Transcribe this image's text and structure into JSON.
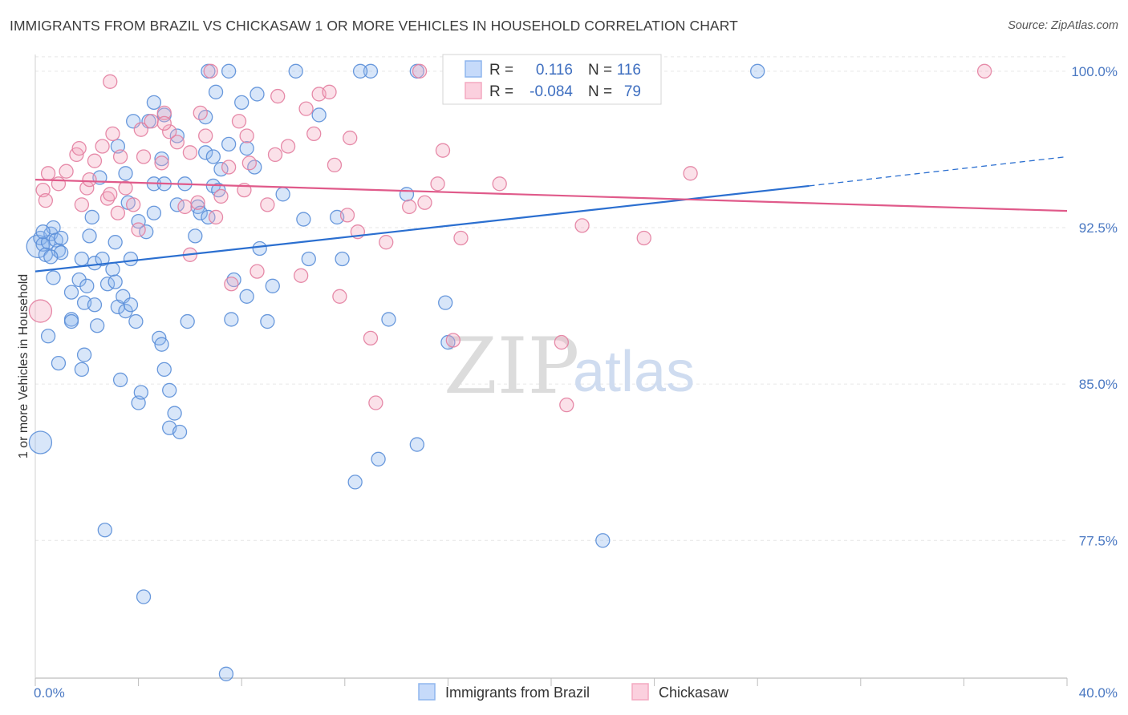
{
  "header": {
    "title": "IMMIGRANTS FROM BRAZIL VS CHICKASAW 1 OR MORE VEHICLES IN HOUSEHOLD CORRELATION CHART",
    "source": "Source: ZipAtlas.com"
  },
  "watermark": {
    "zip": "ZIP",
    "atlas": "atlas"
  },
  "legend_box": {
    "rows": [
      {
        "r_label": "R =",
        "r_value": "0.116",
        "n_label": "N =",
        "n_value": "116",
        "color": "#8fb6ee"
      },
      {
        "r_label": "R =",
        "r_value": "-0.084",
        "n_label": "N =",
        "n_value": "79",
        "color": "#f4a9c1"
      }
    ]
  },
  "bottom_legend": {
    "items": [
      {
        "label": "Immigrants from Brazil",
        "color": "#8fb6ee"
      },
      {
        "label": "Chickasaw",
        "color": "#f4a9c1"
      }
    ]
  },
  "chart_data": {
    "type": "scatter",
    "title": "IMMIGRANTS FROM BRAZIL VS CHICKASAW 1 OR MORE VEHICLES IN HOUSEHOLD CORRELATION CHART",
    "xlabel": "",
    "ylabel": "1 or more Vehicles in Household",
    "xlim": [
      0,
      40
    ],
    "ylim": [
      70.9,
      100.8
    ],
    "x_tick_labels": [
      {
        "value": 0,
        "label": "0.0%"
      },
      {
        "value": 40,
        "label": "40.0%"
      }
    ],
    "y_tick_labels": [
      {
        "value": 100,
        "label": "100.0%"
      },
      {
        "value": 92.5,
        "label": "92.5%"
      },
      {
        "value": 85,
        "label": "85.0%"
      },
      {
        "value": 77.5,
        "label": "77.5%"
      }
    ],
    "grid": true,
    "legend_position": "top-center",
    "series": [
      {
        "name": "Immigrants from Brazil",
        "color": "#8fb6ee",
        "stroke": "#5a8ed8",
        "trend": {
          "x0": 0,
          "y0": 90.4,
          "x1": 30,
          "y1": 94.5,
          "dash_to_x": 40,
          "dash_to_y": 95.9,
          "color": "#2b6fd0"
        },
        "points": [
          [
            0.1,
            91.6
          ],
          [
            0.2,
            92.0
          ],
          [
            0.3,
            91.7
          ],
          [
            0.4,
            91.2
          ],
          [
            0.5,
            91.8
          ],
          [
            0.6,
            92.2
          ],
          [
            0.7,
            92.5
          ],
          [
            0.8,
            91.9
          ],
          [
            0.9,
            91.4
          ],
          [
            1.0,
            92.0
          ],
          [
            0.5,
            87.3
          ],
          [
            0.7,
            90.1
          ],
          [
            0.9,
            86.0
          ],
          [
            1.4,
            88.1
          ],
          [
            1.7,
            90.0
          ],
          [
            1.9,
            88.9
          ],
          [
            2.3,
            88.8
          ],
          [
            2.4,
            87.8
          ],
          [
            1.9,
            86.4
          ],
          [
            1.4,
            88.0
          ],
          [
            1.4,
            89.4
          ],
          [
            1.8,
            85.7
          ],
          [
            2.0,
            89.7
          ],
          [
            2.2,
            93.0
          ],
          [
            2.3,
            90.8
          ],
          [
            2.6,
            91.0
          ],
          [
            2.8,
            89.8
          ],
          [
            3.0,
            90.5
          ],
          [
            3.1,
            89.9
          ],
          [
            3.2,
            88.7
          ],
          [
            3.3,
            85.2
          ],
          [
            3.4,
            89.2
          ],
          [
            3.5,
            88.5
          ],
          [
            3.6,
            93.7
          ],
          [
            3.7,
            91.0
          ],
          [
            3.9,
            88.0
          ],
          [
            4.0,
            84.1
          ],
          [
            4.1,
            84.6
          ],
          [
            4.3,
            92.3
          ],
          [
            4.6,
            93.2
          ],
          [
            4.8,
            87.2
          ],
          [
            4.9,
            86.9
          ],
          [
            5.0,
            85.7
          ],
          [
            5.2,
            84.7
          ],
          [
            5.2,
            82.9
          ],
          [
            5.4,
            83.6
          ],
          [
            5.6,
            82.7
          ],
          [
            5.9,
            88.0
          ],
          [
            6.3,
            93.5
          ],
          [
            6.4,
            93.2
          ],
          [
            6.7,
            93.0
          ],
          [
            6.9,
            94.5
          ],
          [
            7.2,
            95.3
          ],
          [
            7.6,
            88.1
          ],
          [
            7.7,
            90.0
          ],
          [
            8.2,
            89.2
          ],
          [
            8.7,
            91.5
          ],
          [
            9.0,
            88.0
          ],
          [
            9.6,
            94.1
          ],
          [
            10.4,
            92.9
          ],
          [
            10.6,
            91.0
          ],
          [
            11.0,
            97.9
          ],
          [
            11.7,
            93.0
          ],
          [
            11.9,
            91.0
          ],
          [
            13.7,
            88.1
          ],
          [
            14.4,
            94.1
          ],
          [
            14.8,
            82.1
          ],
          [
            15.9,
            88.9
          ],
          [
            16.0,
            87.0
          ],
          [
            22.0,
            77.5
          ],
          [
            3.2,
            96.4
          ],
          [
            3.5,
            95.1
          ],
          [
            4.4,
            97.6
          ],
          [
            4.6,
            98.5
          ],
          [
            4.9,
            95.8
          ],
          [
            5.0,
            97.9
          ],
          [
            5.8,
            94.6
          ],
          [
            6.6,
            97.8
          ],
          [
            7.0,
            99.0
          ],
          [
            7.5,
            96.5
          ],
          [
            8.0,
            98.5
          ],
          [
            8.6,
            98.9
          ],
          [
            10.1,
            100.0
          ],
          [
            13.0,
            100.0
          ],
          [
            14.8,
            100.0
          ],
          [
            12.6,
            100.0
          ],
          [
            6.7,
            100.0
          ],
          [
            7.5,
            100.0
          ],
          [
            28.0,
            100.0
          ],
          [
            2.7,
            78.0
          ],
          [
            4.2,
            74.8
          ],
          [
            7.4,
            71.1
          ],
          [
            12.4,
            80.3
          ],
          [
            13.3,
            81.4
          ],
          [
            0.2,
            82.2
          ],
          [
            6.6,
            96.1
          ],
          [
            8.2,
            96.3
          ],
          [
            3.8,
            97.6
          ],
          [
            2.5,
            94.9
          ],
          [
            4.6,
            94.6
          ],
          [
            5.5,
            93.6
          ],
          [
            6.2,
            92.1
          ],
          [
            1.8,
            91.0
          ],
          [
            3.7,
            88.8
          ],
          [
            5.0,
            94.6
          ],
          [
            7.1,
            94.3
          ],
          [
            4.0,
            92.8
          ],
          [
            2.1,
            92.1
          ],
          [
            1.0,
            91.3
          ],
          [
            0.6,
            91.1
          ],
          [
            0.3,
            92.3
          ],
          [
            3.1,
            91.8
          ],
          [
            5.5,
            96.9
          ],
          [
            6.9,
            95.9
          ],
          [
            9.2,
            89.7
          ],
          [
            8.5,
            95.4
          ]
        ]
      },
      {
        "name": "Chickasaw",
        "color": "#f4a9c1",
        "stroke": "#e37ea0",
        "trend": {
          "x0": 0,
          "y0": 94.8,
          "x1": 40,
          "y1": 93.3,
          "color": "#e05a8a"
        },
        "points": [
          [
            0.2,
            88.5
          ],
          [
            0.3,
            94.3
          ],
          [
            0.4,
            93.8
          ],
          [
            0.5,
            95.1
          ],
          [
            0.9,
            94.6
          ],
          [
            1.2,
            95.2
          ],
          [
            1.6,
            96.0
          ],
          [
            1.8,
            93.6
          ],
          [
            2.0,
            94.4
          ],
          [
            2.1,
            94.8
          ],
          [
            2.3,
            95.7
          ],
          [
            2.6,
            96.4
          ],
          [
            2.8,
            93.9
          ],
          [
            2.9,
            94.1
          ],
          [
            3.0,
            97.0
          ],
          [
            3.2,
            93.2
          ],
          [
            3.5,
            94.4
          ],
          [
            3.8,
            93.6
          ],
          [
            4.1,
            97.2
          ],
          [
            4.2,
            95.9
          ],
          [
            4.5,
            97.6
          ],
          [
            4.9,
            95.6
          ],
          [
            5.0,
            98.0
          ],
          [
            5.2,
            97.1
          ],
          [
            5.5,
            96.6
          ],
          [
            5.8,
            93.5
          ],
          [
            6.0,
            96.1
          ],
          [
            6.3,
            93.7
          ],
          [
            6.6,
            96.9
          ],
          [
            7.0,
            93.0
          ],
          [
            7.2,
            94.0
          ],
          [
            7.5,
            95.4
          ],
          [
            7.9,
            97.6
          ],
          [
            8.2,
            96.9
          ],
          [
            8.3,
            95.6
          ],
          [
            8.6,
            90.4
          ],
          [
            9.0,
            93.6
          ],
          [
            9.3,
            96.0
          ],
          [
            9.8,
            96.4
          ],
          [
            10.3,
            90.2
          ],
          [
            10.5,
            98.2
          ],
          [
            10.8,
            97.0
          ],
          [
            11.0,
            98.9
          ],
          [
            11.6,
            95.5
          ],
          [
            11.8,
            89.2
          ],
          [
            12.1,
            93.1
          ],
          [
            12.5,
            92.3
          ],
          [
            13.0,
            87.2
          ],
          [
            13.2,
            84.1
          ],
          [
            13.6,
            91.8
          ],
          [
            14.5,
            93.5
          ],
          [
            15.1,
            93.7
          ],
          [
            15.6,
            94.6
          ],
          [
            15.8,
            96.2
          ],
          [
            16.2,
            87.1
          ],
          [
            16.5,
            92.0
          ],
          [
            18.0,
            94.6
          ],
          [
            20.4,
            87.0
          ],
          [
            20.6,
            84.0
          ],
          [
            21.2,
            92.6
          ],
          [
            23.6,
            92.0
          ],
          [
            25.4,
            95.1
          ],
          [
            36.8,
            100.0
          ],
          [
            14.9,
            100.0
          ],
          [
            17.0,
            100.0
          ],
          [
            19.1,
            100.0
          ],
          [
            6.8,
            100.0
          ],
          [
            5.0,
            97.5
          ],
          [
            8.1,
            94.3
          ],
          [
            6.0,
            91.2
          ],
          [
            7.6,
            89.8
          ],
          [
            4.0,
            92.4
          ],
          [
            3.3,
            95.9
          ],
          [
            9.4,
            98.8
          ],
          [
            12.2,
            96.8
          ],
          [
            1.7,
            96.3
          ],
          [
            11.4,
            99.0
          ],
          [
            2.9,
            99.5
          ],
          [
            6.4,
            98.0
          ]
        ]
      }
    ]
  }
}
